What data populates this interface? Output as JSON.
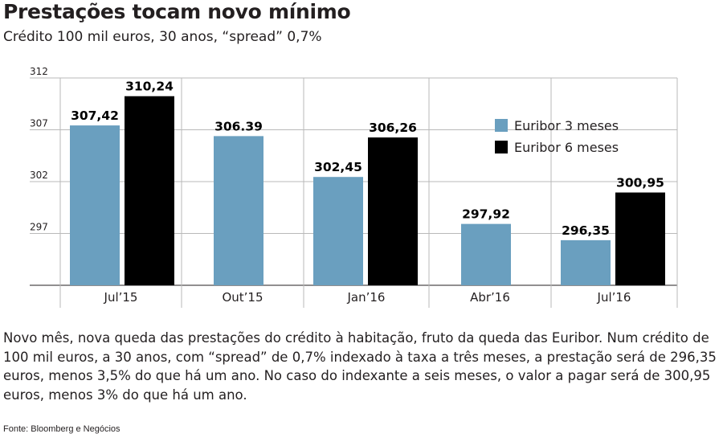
{
  "title": "Prestações tocam novo mínimo",
  "subtitle": "Crédito 100 mil euros, 30 anos, “spread” 0,7%",
  "description": "Novo mês, nova queda das prestações do crédito à habitação, fruto da queda das Euribor. Num crédito de 100 mil euros, a 30 anos, com “spread” de 0,7% indexado à taxa a três meses, a prestação será de 296,35 euros, menos 3,5% do que há um ano. No caso do indexante a seis meses, o valor a pagar será de 300,95 euros, menos 3% do que há um ano.",
  "source": "Fonte: Bloomberg e Negócios",
  "colors": {
    "euribor3": "#6a9fbf",
    "euribor6": "#000000",
    "grid": "#b9b9b9",
    "axis": "#231f20"
  },
  "chart_data": {
    "type": "bar",
    "categories": [
      "Jul’15",
      "Out’15",
      "Jan’16",
      "Abr’16",
      "Jul’16"
    ],
    "series": [
      {
        "name": "Euribor 3 meses",
        "values": [
          307.42,
          306.39,
          302.45,
          297.92,
          296.35
        ],
        "labels": [
          "307,42",
          "306.39",
          "302,45",
          "297,92",
          "296,35"
        ]
      },
      {
        "name": "Euribor 6 meses",
        "values": [
          310.24,
          null,
          306.26,
          null,
          300.95
        ],
        "labels": [
          "310,24",
          "",
          "306,26",
          "",
          "300,95"
        ]
      }
    ],
    "ylim": [
      292,
      312
    ],
    "yticks": [
      297,
      302,
      307,
      312
    ],
    "grid": true,
    "legend_position": "top-right"
  }
}
